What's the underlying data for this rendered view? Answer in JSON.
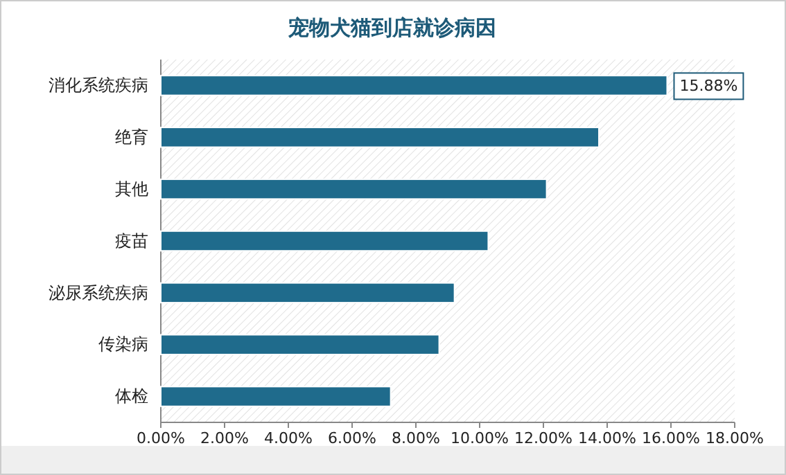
{
  "chart_data": {
    "type": "bar",
    "orientation": "horizontal",
    "title": "宠物犬猫到店就诊病因",
    "categories": [
      "消化系统疾病",
      "绝育",
      "其他",
      "疫苗",
      "泌尿系统疾病",
      "传染病",
      "体检"
    ],
    "values": [
      15.88,
      13.74,
      12.1,
      10.27,
      9.21,
      8.73,
      7.21
    ],
    "value_labels": [
      "15.88%",
      null,
      null,
      null,
      null,
      null,
      null
    ],
    "color": "#1f6b8c",
    "xlim": [
      0,
      18
    ],
    "xticks": [
      {
        "value": 0,
        "label": "0.00%"
      },
      {
        "value": 2,
        "label": "2.00%"
      },
      {
        "value": 4,
        "label": "4.00%"
      },
      {
        "value": 6,
        "label": "6.00%"
      },
      {
        "value": 8,
        "label": "8.00%"
      },
      {
        "value": 10,
        "label": "10.00%"
      },
      {
        "value": 12,
        "label": "12.00%"
      },
      {
        "value": 14,
        "label": "14.00%"
      },
      {
        "value": 16,
        "label": "16.00%"
      },
      {
        "value": 18,
        "label": "18.00%"
      }
    ],
    "grid": false
  }
}
